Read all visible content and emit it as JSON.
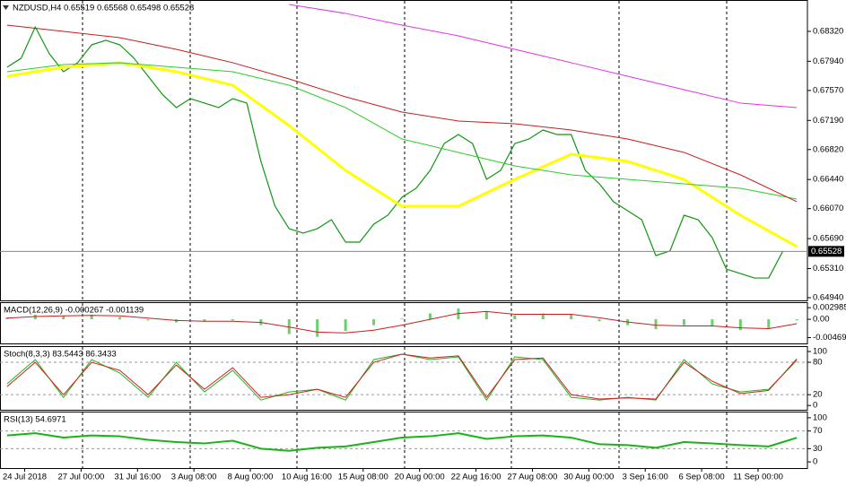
{
  "chart_data": [
    {
      "type": "line",
      "title": "NZDUSD,H4 0.65519 0.65568 0.65498 0.65528",
      "xlim": [
        -7,
        222
      ],
      "ylim": [
        0.64906,
        0.68718
      ],
      "yticks": [
        {
          "value": 0.6832,
          "label": "0.68320"
        },
        {
          "value": 0.6794,
          "label": "0.67940"
        },
        {
          "value": 0.6757,
          "label": "0.67570"
        },
        {
          "value": 0.6719,
          "label": "0.67190"
        },
        {
          "value": 0.6682,
          "label": "0.66820"
        },
        {
          "value": 0.6644,
          "label": "0.66440"
        },
        {
          "value": 0.6607,
          "label": "0.66070"
        },
        {
          "value": 0.6569,
          "label": "0.65690"
        },
        {
          "value": 0.6531,
          "label": "0.65310"
        },
        {
          "value": 0.6494,
          "label": "0.64940"
        }
      ],
      "current_price": 0.65528,
      "series": [
        {
          "color": "#129612",
          "width": 1.2,
          "x": [
            -5,
            -1,
            3,
            7,
            11,
            15,
            19,
            23,
            27,
            31,
            35,
            39,
            43,
            47,
            51,
            55,
            59,
            63,
            67,
            71,
            75,
            79,
            83,
            87,
            91,
            95,
            99,
            103,
            107,
            111,
            115,
            119,
            123,
            127,
            131,
            135,
            139,
            143,
            147,
            151,
            155,
            159,
            163,
            167,
            171,
            175,
            179,
            183,
            187,
            191,
            195,
            199,
            203,
            207,
            211,
            215
          ],
          "values": [
            0.67865,
            0.67979,
            0.68377,
            0.68035,
            0.67808,
            0.67922,
            0.68149,
            0.68206,
            0.68149,
            0.67979,
            0.67751,
            0.67523,
            0.67353,
            0.67466,
            0.6741,
            0.67353,
            0.67466,
            0.6741,
            0.6667,
            0.66101,
            0.65816,
            0.6576,
            0.65816,
            0.6593,
            0.65646,
            0.65646,
            0.65873,
            0.65987,
            0.66215,
            0.66328,
            0.66556,
            0.66897,
            0.67011,
            0.66897,
            0.66442,
            0.66556,
            0.66897,
            0.66954,
            0.67068,
            0.67011,
            0.67011,
            0.66556,
            0.66385,
            0.66158,
            0.66044,
            0.6593,
            0.65475,
            0.65532,
            0.65987,
            0.6593,
            0.65702,
            0.65304,
            0.65247,
            0.6519,
            0.6519,
            0.65528
          ]
        },
        {
          "color": "#ffff00",
          "width": 3,
          "x": [
            -5,
            11,
            27,
            43,
            59,
            75,
            91,
            107,
            123,
            139,
            155,
            171,
            187,
            203,
            219
          ],
          "values": [
            0.67751,
            0.67865,
            0.67922,
            0.67808,
            0.67637,
            0.67125,
            0.66556,
            0.66101,
            0.66101,
            0.66442,
            0.66761,
            0.6667,
            0.66442,
            0.65987,
            0.65589
          ]
        },
        {
          "color": "#2ccd2c",
          "width": 1,
          "x": [
            -5,
            11,
            27,
            43,
            59,
            75,
            91,
            107,
            123,
            139,
            155,
            171,
            187,
            203,
            219
          ],
          "values": [
            0.67808,
            0.67899,
            0.67922,
            0.67865,
            0.67808,
            0.67637,
            0.67353,
            0.66954,
            0.66784,
            0.66613,
            0.66499,
            0.66442,
            0.66385,
            0.66328,
            0.66192
          ]
        },
        {
          "color": "#c81e1e",
          "width": 1,
          "x": [
            -5,
            11,
            27,
            43,
            59,
            75,
            91,
            107,
            123,
            139,
            155,
            171,
            187,
            203,
            219
          ],
          "values": [
            0.684,
            0.6832,
            0.6824,
            0.68092,
            0.67922,
            0.67717,
            0.67489,
            0.67296,
            0.67182,
            0.67148,
            0.67068,
            0.66954,
            0.66784,
            0.66499,
            0.66158
          ]
        },
        {
          "color": "#e632e6",
          "width": 1,
          "x": [
            -5,
            11,
            27,
            43,
            59,
            75,
            91,
            107,
            123,
            139,
            155,
            171,
            187,
            203,
            219
          ],
          "values": [
            null,
            null,
            null,
            null,
            null,
            0.68661,
            0.68548,
            0.684,
            0.68263,
            0.68092,
            0.67922,
            0.67751,
            0.6758,
            0.6741,
            0.67353
          ]
        }
      ]
    },
    {
      "type": "bar",
      "title": "MACD(12,26,9) -0.000267 -0.001139",
      "xlim": [
        -7,
        222
      ],
      "ylim": [
        -0.0062,
        0.0044
      ],
      "yticks": [
        0.002985,
        {
          "value": 0,
          "label": "0.00"
        },
        -0.004694
      ],
      "x": [
        -5,
        3,
        11,
        19,
        27,
        35,
        43,
        51,
        59,
        67,
        75,
        83,
        91,
        99,
        107,
        115,
        123,
        131,
        139,
        147,
        155,
        163,
        171,
        179,
        187,
        195,
        203,
        211,
        219
      ],
      "series": [
        {
          "type": "bar",
          "color": "#6ccf6c",
          "values": [
            0.0005,
            0.0012,
            0.0008,
            0.0012,
            0.0006,
            -0.0003,
            -0.0008,
            -0.0006,
            -0.0003,
            -0.0015,
            -0.0038,
            -0.0045,
            -0.003,
            -0.0015,
            0.0002,
            0.0015,
            0.0028,
            0.002,
            0.001,
            0.0015,
            0.0012,
            -0.0005,
            -0.0015,
            -0.0025,
            -0.0015,
            -0.0018,
            -0.0028,
            -0.0025,
            -0.000267
          ]
        },
        {
          "type": "line",
          "color": "#c81e1e",
          "values": [
            0.0003,
            0.0007,
            0.0009,
            0.001,
            0.0009,
            0.0003,
            -0.0003,
            -0.0005,
            -0.0005,
            -0.0008,
            -0.002,
            -0.0033,
            -0.0035,
            -0.0028,
            -0.0015,
            0,
            0.0015,
            0.002,
            0.0013,
            0.0013,
            0.0013,
            0.0004,
            -0.0007,
            -0.0015,
            -0.0017,
            -0.0017,
            -0.0022,
            -0.0024,
            -0.001139
          ]
        }
      ]
    },
    {
      "type": "line",
      "title": "Stoch(8,3,3) 83.5443 86.3433",
      "xlim": [
        -7,
        222
      ],
      "ylim": [
        -8,
        110
      ],
      "yticks": [
        100,
        80,
        20,
        0
      ],
      "levels": [
        80,
        20
      ],
      "x": [
        -5,
        3,
        11,
        19,
        27,
        35,
        43,
        51,
        59,
        67,
        75,
        83,
        91,
        99,
        107,
        115,
        123,
        131,
        139,
        147,
        155,
        163,
        171,
        179,
        187,
        195,
        203,
        211,
        219
      ],
      "series": [
        {
          "color": "#22b422",
          "width": 1,
          "values": [
            40,
            85,
            15,
            85,
            60,
            15,
            80,
            25,
            65,
            10,
            25,
            30,
            10,
            85,
            95,
            85,
            90,
            10,
            90,
            85,
            15,
            10,
            15,
            10,
            85,
            40,
            25,
            30,
            83.5443
          ]
        },
        {
          "color": "#d21e1e",
          "width": 1,
          "values": [
            35,
            80,
            20,
            80,
            65,
            20,
            75,
            30,
            70,
            15,
            20,
            30,
            15,
            80,
            95,
            88,
            92,
            15,
            85,
            88,
            20,
            12,
            14,
            12,
            80,
            45,
            22,
            28,
            86.3433
          ]
        }
      ]
    },
    {
      "type": "line",
      "title": "RSI(13) 54.6971",
      "xlim": [
        -7,
        222
      ],
      "ylim": [
        -14,
        114
      ],
      "yticks": [
        100,
        70,
        30,
        0
      ],
      "levels": [
        70,
        30
      ],
      "x": [
        -5,
        3,
        11,
        19,
        27,
        35,
        43,
        51,
        59,
        67,
        75,
        83,
        91,
        99,
        107,
        115,
        123,
        131,
        139,
        147,
        155,
        163,
        171,
        179,
        187,
        195,
        203,
        211,
        219
      ],
      "series": [
        {
          "color": "#19b419",
          "width": 2,
          "values": [
            60,
            65,
            55,
            60,
            58,
            50,
            45,
            42,
            48,
            30,
            25,
            32,
            35,
            45,
            55,
            58,
            65,
            52,
            58,
            60,
            55,
            40,
            38,
            32,
            45,
            42,
            38,
            35,
            54.6971
          ]
        }
      ],
      "xticks": [
        {
          "value": 0,
          "label": "24 Jul 2018"
        },
        {
          "value": 16,
          "label": "27 Jul 00:00"
        },
        {
          "value": 32,
          "label": "31 Jul 16:00"
        },
        {
          "value": 48,
          "label": "3 Aug 08:00"
        },
        {
          "value": 64,
          "label": "8 Aug 00:00"
        },
        {
          "value": 80,
          "label": "10 Aug 16:00"
        },
        {
          "value": 96,
          "label": "15 Aug 08:00"
        },
        {
          "value": 112,
          "label": "20 Aug 00:00"
        },
        {
          "value": 128,
          "label": "22 Aug 16:00"
        },
        {
          "value": 144,
          "label": "27 Aug 08:00"
        },
        {
          "value": 160,
          "label": "30 Aug 00:00"
        },
        {
          "value": 176,
          "label": "3 Sep 16:00"
        },
        {
          "value": 192,
          "label": "6 Sep 08:00"
        },
        {
          "value": 208,
          "label": "11 Sep 00:00"
        }
      ]
    }
  ]
}
